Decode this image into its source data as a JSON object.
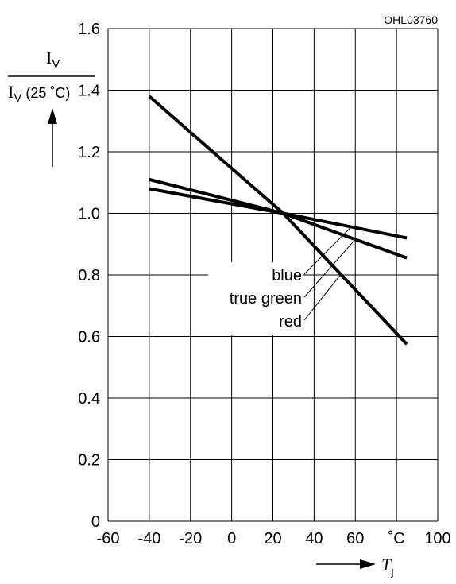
{
  "chart_data": {
    "type": "line",
    "code": "OHL03760",
    "ylabel_top": "I",
    "ylabel_top_sub": "V",
    "ylabel_bottom_main": "I",
    "ylabel_bottom_sub": "V",
    "ylabel_bottom_tail": " (25 ˚C)",
    "xlabel_main": "T",
    "xlabel_sub": "j",
    "x_ticks": [
      "-60",
      "-40",
      "-20",
      "0",
      "20",
      "40",
      "60",
      "˚C",
      "100"
    ],
    "y_ticks": [
      "0",
      "0.2",
      "0.4",
      "0.6",
      "0.8",
      "1.0",
      "1.2",
      "1.4",
      "1.6"
    ],
    "xlim": [
      -60,
      100
    ],
    "ylim": [
      0,
      1.6
    ],
    "grid": true,
    "series": [
      {
        "name": "blue",
        "x": [
          -40,
          25,
          85
        ],
        "y": [
          1.08,
          1.0,
          0.92
        ]
      },
      {
        "name": "true green",
        "x": [
          -40,
          25,
          85
        ],
        "y": [
          1.11,
          1.0,
          0.855
        ]
      },
      {
        "name": "red",
        "x": [
          -40,
          25,
          85
        ],
        "y": [
          1.38,
          1.0,
          0.575
        ]
      }
    ]
  }
}
